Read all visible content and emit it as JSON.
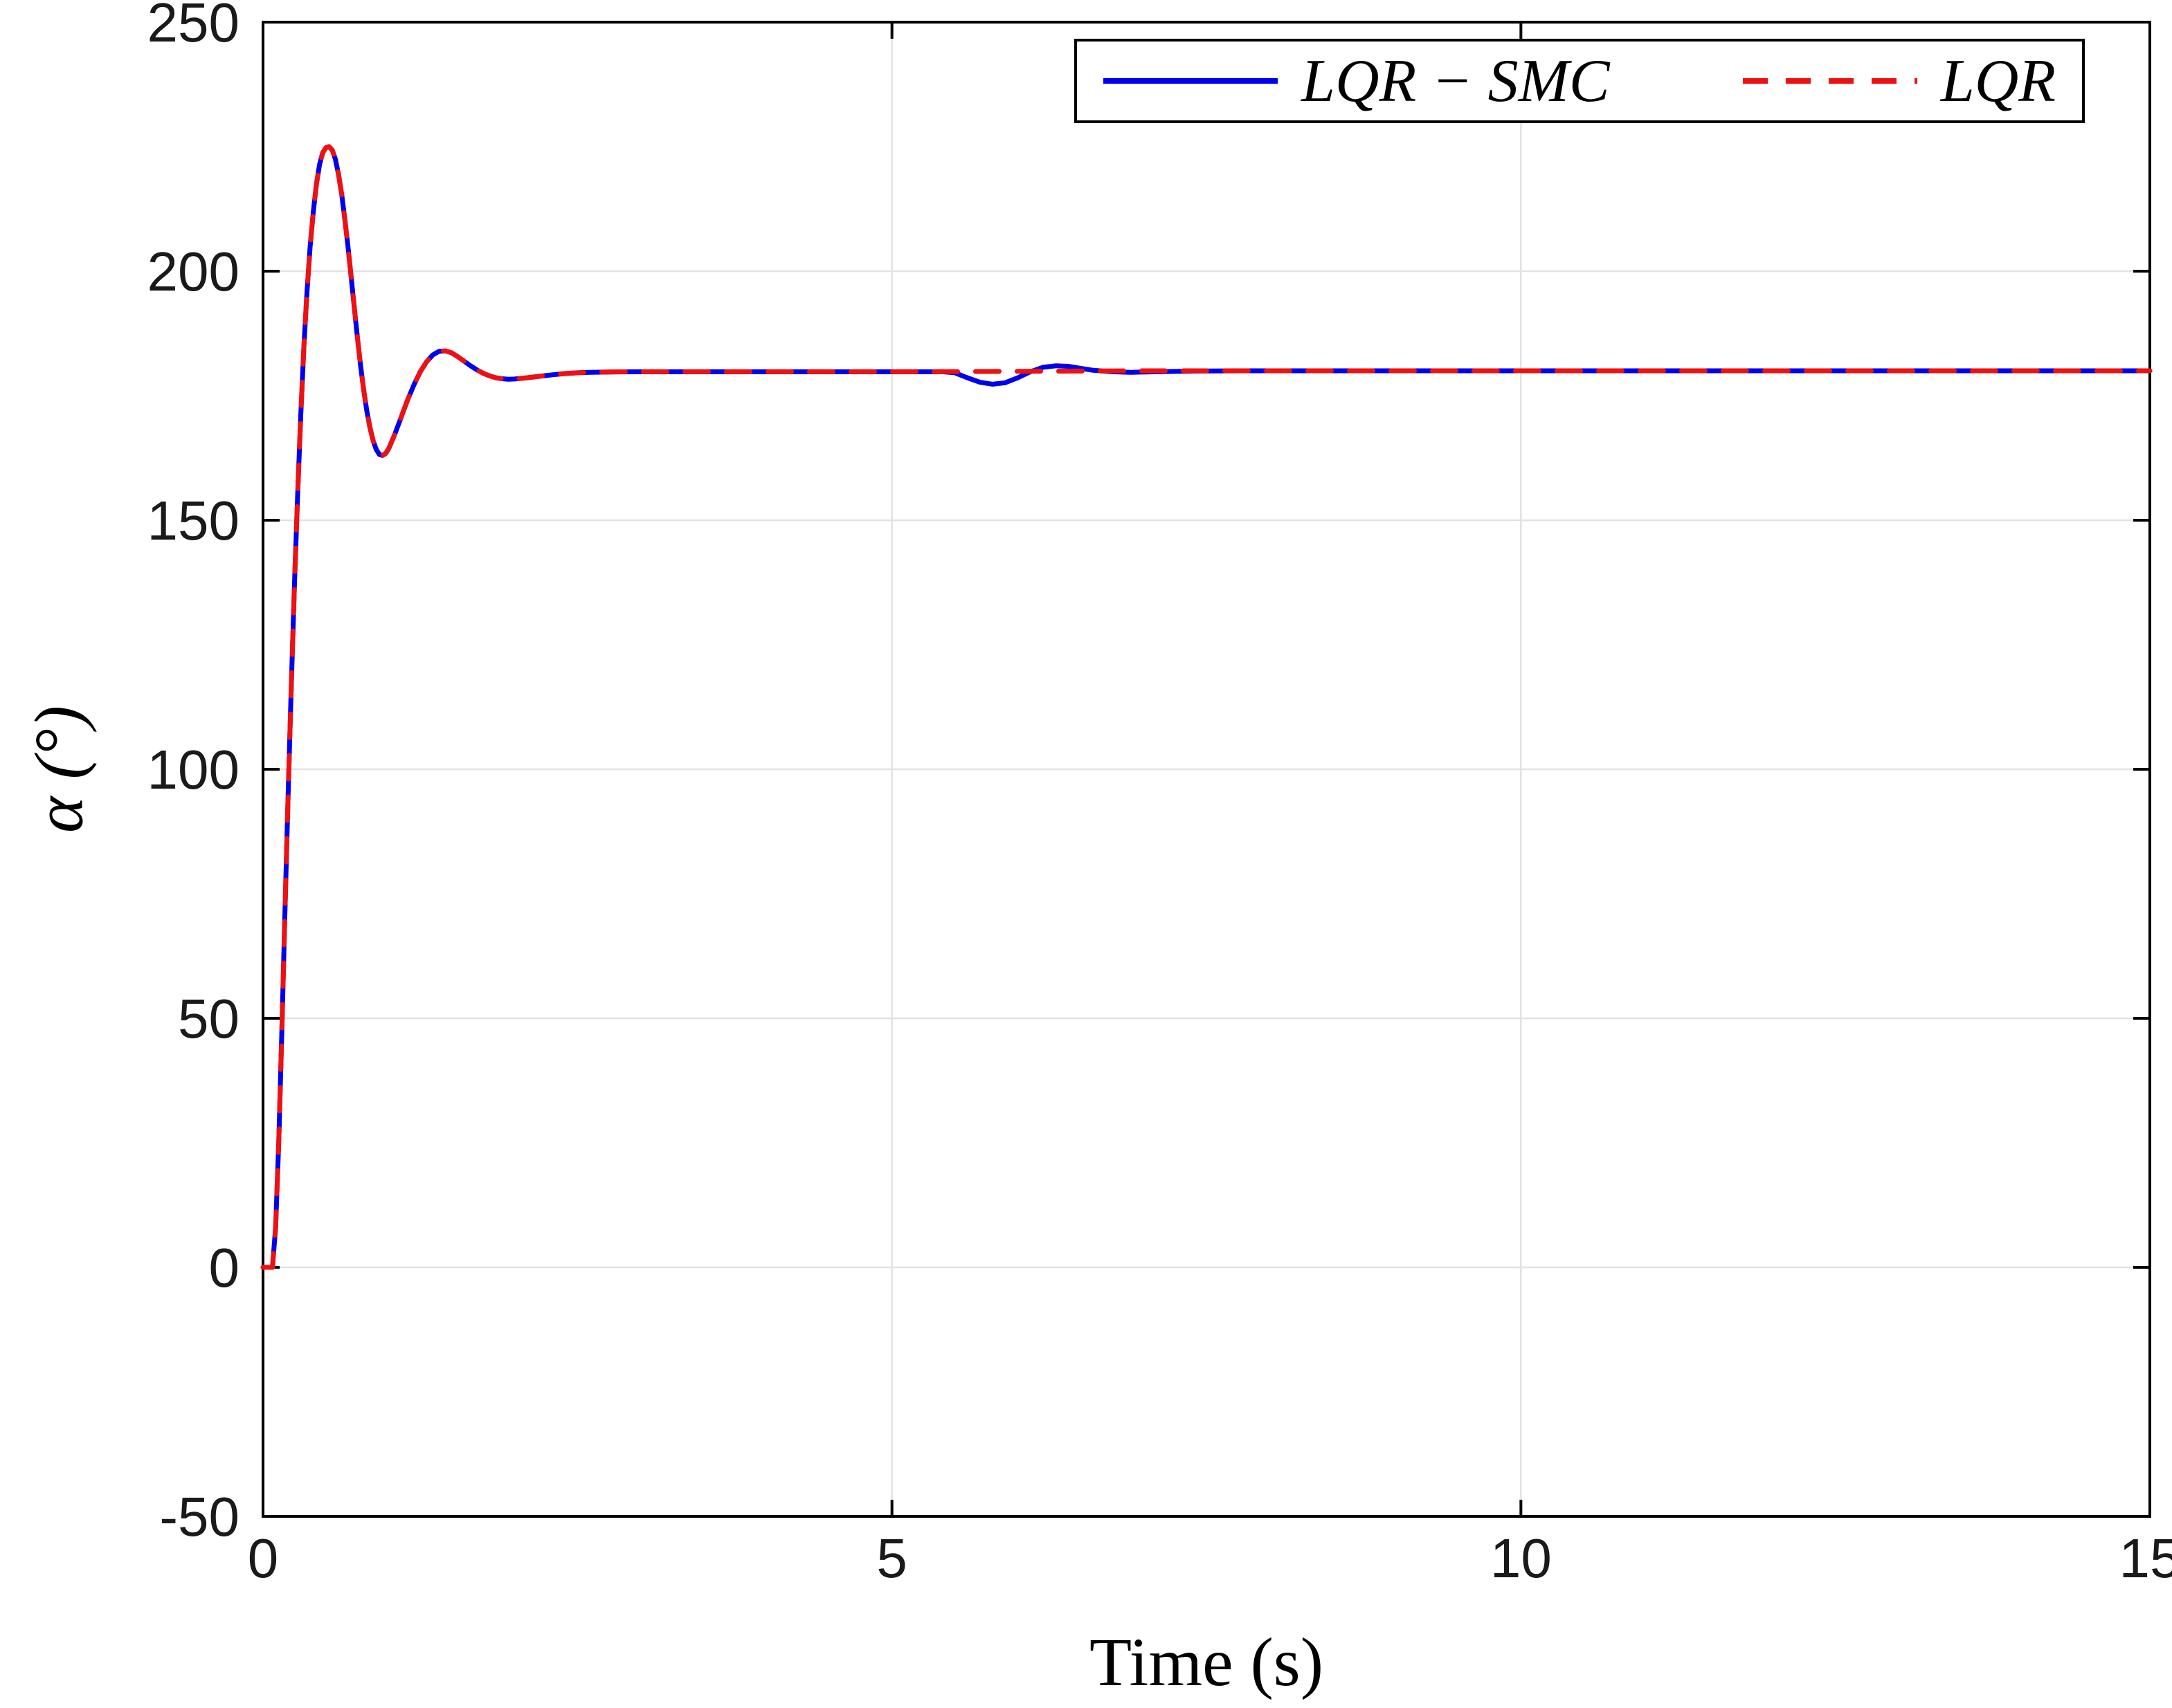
{
  "figure": {
    "background": "#ffffff",
    "axis_color": "#000000",
    "grid_color": "#e2e2e2",
    "tick_label_color": "#1a1a1a"
  },
  "chart_data": {
    "type": "line",
    "title": "",
    "xlabel": "Time (s)",
    "ylabel": "α (°)",
    "xlim": [
      0,
      15
    ],
    "ylim": [
      -50,
      250
    ],
    "xticks": [
      0,
      5,
      10,
      15
    ],
    "yticks": [
      -50,
      0,
      50,
      100,
      150,
      200,
      250
    ],
    "grid": true,
    "legend_position": "top-right",
    "series": [
      {
        "name": "LQR − SMC",
        "color": "#0000ee",
        "style": "solid",
        "points": [
          [
            0,
            0
          ],
          [
            0.075,
            0
          ],
          [
            0.1,
            8
          ],
          [
            0.125,
            25
          ],
          [
            0.15,
            48
          ],
          [
            0.175,
            72
          ],
          [
            0.2,
            95
          ],
          [
            0.225,
            117
          ],
          [
            0.25,
            137
          ],
          [
            0.275,
            155
          ],
          [
            0.3,
            171
          ],
          [
            0.325,
            185
          ],
          [
            0.35,
            196
          ],
          [
            0.375,
            205
          ],
          [
            0.4,
            212
          ],
          [
            0.425,
            217.5
          ],
          [
            0.45,
            221.5
          ],
          [
            0.475,
            223.8
          ],
          [
            0.5,
            224.8
          ],
          [
            0.525,
            225
          ],
          [
            0.55,
            224.3
          ],
          [
            0.575,
            222.5
          ],
          [
            0.6,
            219.5
          ],
          [
            0.625,
            215.5
          ],
          [
            0.65,
            210.5
          ],
          [
            0.675,
            205
          ],
          [
            0.7,
            199
          ],
          [
            0.725,
            192.8
          ],
          [
            0.75,
            186.8
          ],
          [
            0.775,
            181.2
          ],
          [
            0.8,
            176.2
          ],
          [
            0.825,
            172
          ],
          [
            0.85,
            168.6
          ],
          [
            0.875,
            166
          ],
          [
            0.9,
            164.2
          ],
          [
            0.925,
            163.2
          ],
          [
            0.95,
            163
          ],
          [
            0.975,
            163.4
          ],
          [
            1,
            164.4
          ],
          [
            1.05,
            167.4
          ],
          [
            1.1,
            170.8
          ],
          [
            1.15,
            174.2
          ],
          [
            1.2,
            177.2
          ],
          [
            1.25,
            179.8
          ],
          [
            1.3,
            181.8
          ],
          [
            1.35,
            183.2
          ],
          [
            1.4,
            183.9
          ],
          [
            1.45,
            184
          ],
          [
            1.5,
            183.6
          ],
          [
            1.55,
            182.8
          ],
          [
            1.6,
            181.9
          ],
          [
            1.65,
            181
          ],
          [
            1.7,
            180.2
          ],
          [
            1.75,
            179.5
          ],
          [
            1.8,
            179
          ],
          [
            1.85,
            178.6
          ],
          [
            1.9,
            178.4
          ],
          [
            1.95,
            178.3
          ],
          [
            2,
            178.35
          ],
          [
            2.1,
            178.6
          ],
          [
            2.2,
            178.9
          ],
          [
            2.3,
            179.2
          ],
          [
            2.4,
            179.45
          ],
          [
            2.5,
            179.6
          ],
          [
            2.6,
            179.7
          ],
          [
            2.8,
            179.78
          ],
          [
            3,
            179.8
          ],
          [
            3.5,
            179.8
          ],
          [
            4,
            179.8
          ],
          [
            4.5,
            179.8
          ],
          [
            5,
            179.8
          ],
          [
            5.4,
            179.8
          ],
          [
            5.5,
            179.6
          ],
          [
            5.6,
            178.6
          ],
          [
            5.7,
            177.7
          ],
          [
            5.8,
            177.3
          ],
          [
            5.9,
            177.6
          ],
          [
            6,
            178.6
          ],
          [
            6.1,
            179.8
          ],
          [
            6.2,
            180.7
          ],
          [
            6.3,
            181
          ],
          [
            6.4,
            180.9
          ],
          [
            6.5,
            180.5
          ],
          [
            6.6,
            180.1
          ],
          [
            6.75,
            179.8
          ],
          [
            6.9,
            179.7
          ],
          [
            7.1,
            179.8
          ],
          [
            7.4,
            179.95
          ],
          [
            7.8,
            180
          ],
          [
            8.5,
            180
          ],
          [
            10,
            180
          ],
          [
            12,
            180
          ],
          [
            15,
            180
          ]
        ]
      },
      {
        "name": "LQR",
        "color": "#ee1111",
        "style": "dashed",
        "points": [
          [
            0,
            0
          ],
          [
            0.075,
            0
          ],
          [
            0.1,
            8
          ],
          [
            0.125,
            25
          ],
          [
            0.15,
            48
          ],
          [
            0.175,
            72
          ],
          [
            0.2,
            95
          ],
          [
            0.225,
            117
          ],
          [
            0.25,
            137
          ],
          [
            0.275,
            155
          ],
          [
            0.3,
            171
          ],
          [
            0.325,
            185
          ],
          [
            0.35,
            196
          ],
          [
            0.375,
            205
          ],
          [
            0.4,
            212
          ],
          [
            0.425,
            217.5
          ],
          [
            0.45,
            221.5
          ],
          [
            0.475,
            223.8
          ],
          [
            0.5,
            224.8
          ],
          [
            0.525,
            225
          ],
          [
            0.55,
            224.3
          ],
          [
            0.575,
            222.5
          ],
          [
            0.6,
            219.5
          ],
          [
            0.625,
            215.5
          ],
          [
            0.65,
            210.5
          ],
          [
            0.675,
            205
          ],
          [
            0.7,
            199
          ],
          [
            0.725,
            192.8
          ],
          [
            0.75,
            186.8
          ],
          [
            0.775,
            181.2
          ],
          [
            0.8,
            176.2
          ],
          [
            0.825,
            172
          ],
          [
            0.85,
            168.6
          ],
          [
            0.875,
            166
          ],
          [
            0.9,
            164.2
          ],
          [
            0.925,
            163.2
          ],
          [
            0.95,
            163
          ],
          [
            0.975,
            163.4
          ],
          [
            1,
            164.4
          ],
          [
            1.05,
            167.4
          ],
          [
            1.1,
            170.8
          ],
          [
            1.15,
            174.2
          ],
          [
            1.2,
            177.2
          ],
          [
            1.25,
            179.8
          ],
          [
            1.3,
            181.8
          ],
          [
            1.35,
            183.2
          ],
          [
            1.4,
            183.9
          ],
          [
            1.45,
            184
          ],
          [
            1.5,
            183.6
          ],
          [
            1.55,
            182.8
          ],
          [
            1.6,
            181.9
          ],
          [
            1.65,
            181
          ],
          [
            1.7,
            180.2
          ],
          [
            1.75,
            179.5
          ],
          [
            1.8,
            179
          ],
          [
            1.85,
            178.6
          ],
          [
            1.9,
            178.4
          ],
          [
            1.95,
            178.3
          ],
          [
            2,
            178.35
          ],
          [
            2.1,
            178.6
          ],
          [
            2.2,
            178.9
          ],
          [
            2.3,
            179.2
          ],
          [
            2.4,
            179.45
          ],
          [
            2.5,
            179.6
          ],
          [
            2.6,
            179.7
          ],
          [
            2.8,
            179.78
          ],
          [
            3,
            179.8
          ],
          [
            3.5,
            179.8
          ],
          [
            4,
            179.8
          ],
          [
            4.5,
            179.8
          ],
          [
            5,
            179.8
          ],
          [
            5.5,
            179.85
          ],
          [
            6,
            179.9
          ],
          [
            6.5,
            179.95
          ],
          [
            7,
            180
          ],
          [
            8,
            180
          ],
          [
            10,
            180
          ],
          [
            12,
            180
          ],
          [
            15,
            180
          ]
        ]
      }
    ]
  }
}
